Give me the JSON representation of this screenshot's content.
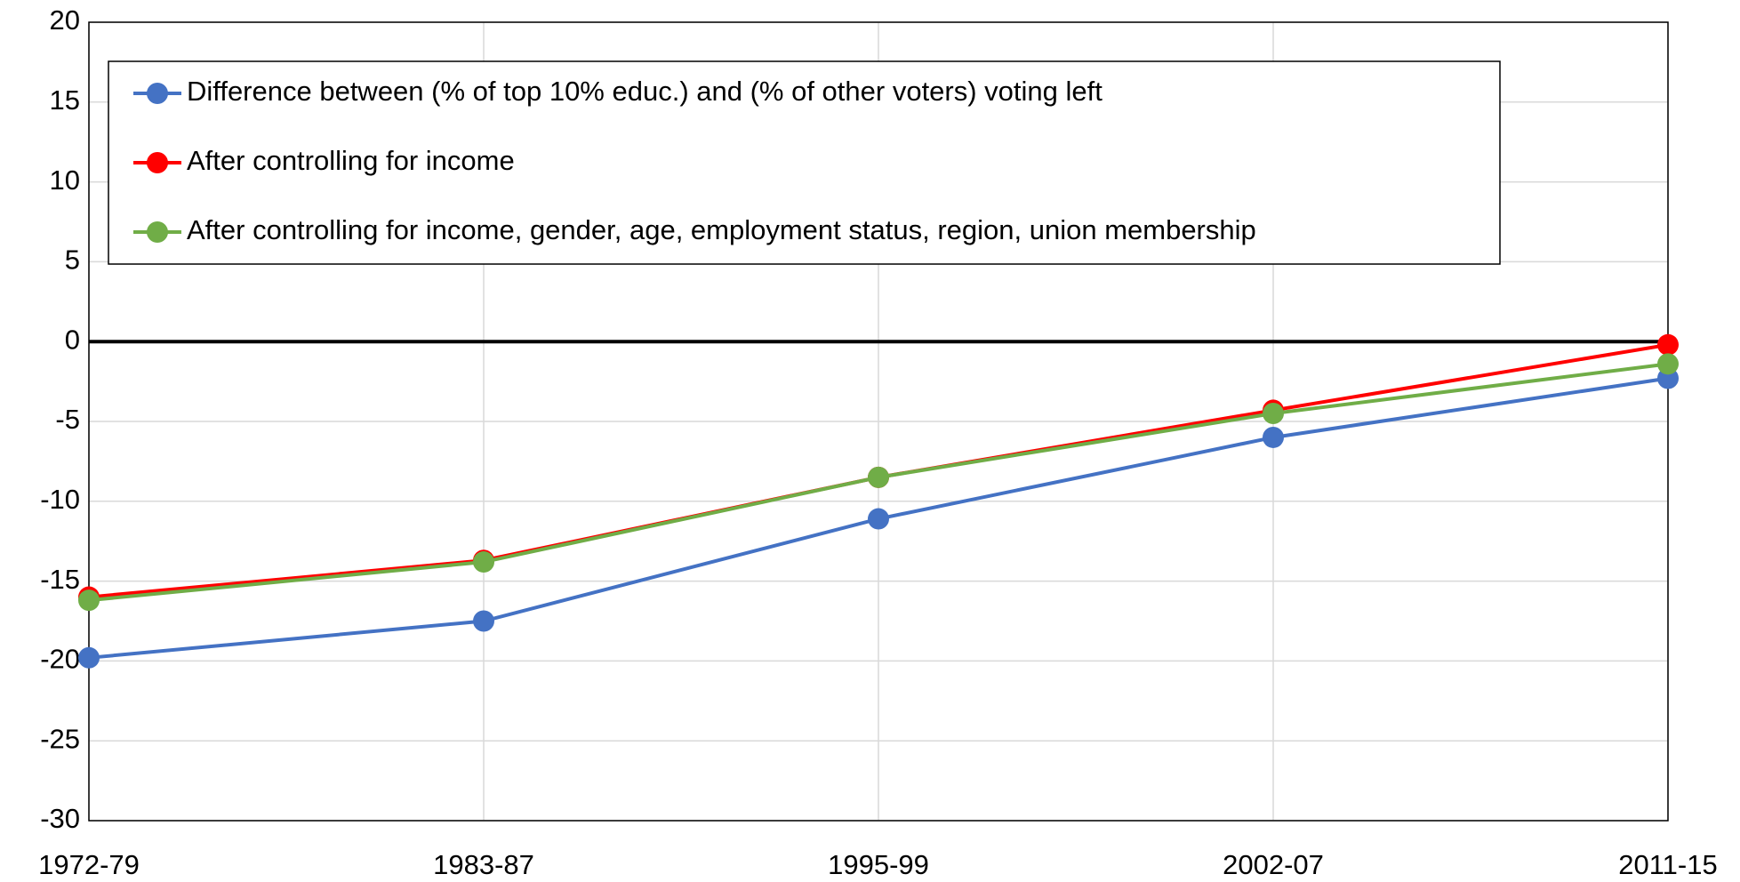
{
  "chart_data": {
    "type": "line",
    "categories": [
      "1972-79",
      "1983-87",
      "1995-99",
      "2002-07",
      "2011-15"
    ],
    "series": [
      {
        "name": "Difference between (% of top 10% educ.) and (% of other voters) voting left",
        "color": "#4472c4",
        "values": [
          -19.8,
          -17.5,
          -11.1,
          -6.0,
          -2.3
        ]
      },
      {
        "name": "After controlling for income",
        "color": "#ff0000",
        "values": [
          -16.0,
          -13.7,
          -8.5,
          -4.3,
          -0.2
        ]
      },
      {
        "name": "After controlling for income, gender, age, employment status, region, union membership",
        "color": "#70ad47",
        "values": [
          -16.2,
          -13.8,
          -8.5,
          -4.5,
          -1.4
        ]
      }
    ],
    "ylim": [
      -30,
      20
    ],
    "yticks": [
      -30,
      -25,
      -20,
      -15,
      -10,
      -5,
      0,
      5,
      10,
      15,
      20
    ],
    "grid": true,
    "legend": "upper left"
  }
}
